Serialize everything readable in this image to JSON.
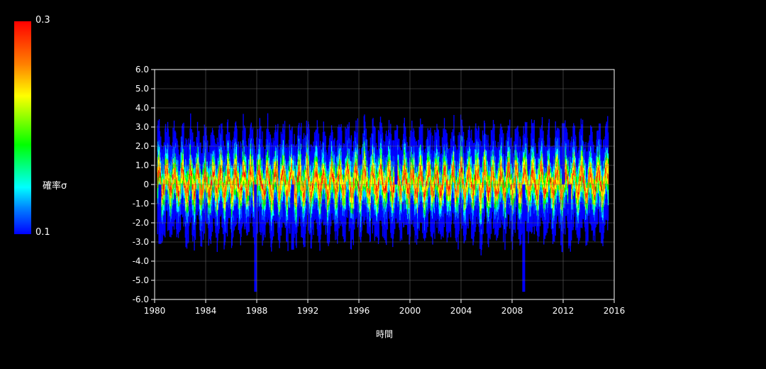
{
  "colorbar": {
    "max_label": "0.3",
    "min_label": "0.1",
    "title": "確率σ",
    "colors": [
      "#0000ff",
      "#0080ff",
      "#00ffff",
      "#00ff00",
      "#ffff00",
      "#ff7f00",
      "#ff0000"
    ]
  },
  "chart_data": {
    "type": "heatmap",
    "xlabel": "時間",
    "ylabel": "",
    "xlim": [
      1980,
      2016
    ],
    "ylim": [
      -6.0,
      6.0
    ],
    "x_ticks": [
      "1980",
      "1984",
      "1988",
      "1992",
      "1996",
      "2000",
      "2004",
      "2008",
      "2012",
      "2016"
    ],
    "y_ticks": [
      "6.0",
      "5.0",
      "4.0",
      "3.0",
      "2.0",
      "1.0",
      "0",
      "-1.0",
      "-2.0",
      "-3.0",
      "-4.0",
      "-5.0",
      "-6.0"
    ],
    "grid": true,
    "colorbar_range": [
      0.1,
      0.3
    ],
    "background": "#000000",
    "extremes": [
      {
        "x": 1980.3,
        "y": -3.1
      },
      {
        "x": 1987.8,
        "y": -5.6
      },
      {
        "x": 1990.7,
        "y": -3.4
      },
      {
        "x": 1998.8,
        "y": 2.7
      },
      {
        "x": 2008.8,
        "y": -5.6
      },
      {
        "x": 2011.9,
        "y": 3.2
      },
      {
        "x": 2012.4,
        "y": -3.2
      }
    ]
  }
}
